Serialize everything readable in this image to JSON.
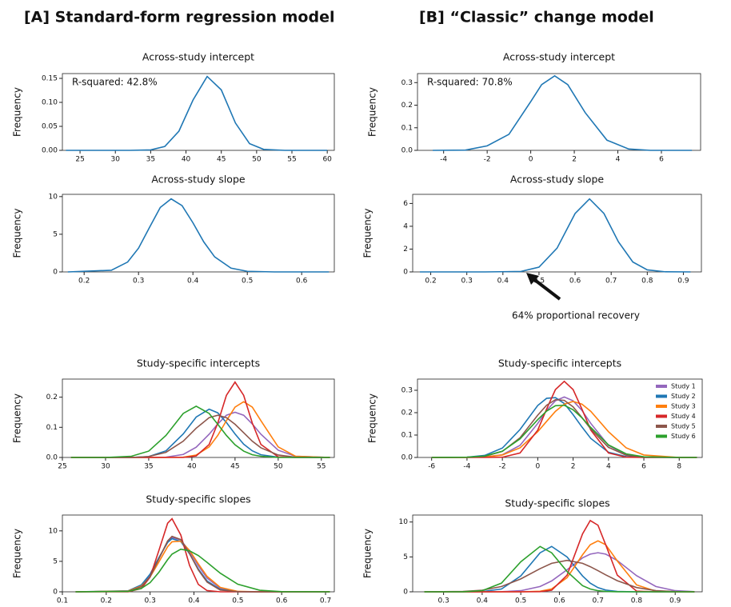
{
  "panel_titles": [
    "[A] Standard-form regression model",
    "[B] “Classic” change model"
  ],
  "chart_data": [
    {
      "type": "line",
      "title": "Across-study intercept",
      "ylabel": "Frequency",
      "annotation": "R-squared: 42.8%",
      "color": "#1f77b4",
      "x": [
        23,
        32,
        35,
        37,
        39,
        41,
        43,
        45,
        47,
        49,
        51,
        54,
        60
      ],
      "values": [
        0,
        0,
        0.001,
        0.008,
        0.04,
        0.105,
        0.154,
        0.126,
        0.057,
        0.014,
        0.002,
        0,
        0
      ],
      "xlim": [
        22.5,
        61
      ],
      "xticks": [
        25,
        30,
        35,
        40,
        45,
        50,
        55,
        60
      ],
      "ylim": [
        0,
        0.16
      ],
      "yticks": [
        {
          "value": 0,
          "label": "0.00"
        },
        {
          "value": 0.05,
          "label": "0.05"
        },
        {
          "value": 0.1,
          "label": "0.10"
        },
        0.15
      ]
    },
    {
      "type": "line",
      "title": "Across-study slope",
      "ylabel": "Frequency",
      "color": "#1f77b4",
      "x": [
        0.17,
        0.25,
        0.28,
        0.3,
        0.32,
        0.34,
        0.36,
        0.38,
        0.4,
        0.42,
        0.44,
        0.47,
        0.5,
        0.55,
        0.65
      ],
      "values": [
        0,
        0.22,
        1.31,
        3.15,
        5.88,
        8.56,
        9.7,
        8.8,
        6.53,
        3.98,
        2.0,
        0.5,
        0.08,
        0,
        0
      ],
      "xlim": [
        0.16,
        0.66
      ],
      "xticks": [
        0.2,
        0.3,
        0.4,
        0.5,
        0.6
      ],
      "ylim": [
        0,
        10.3
      ],
      "yticks": [
        0,
        5,
        10
      ]
    },
    {
      "type": "line",
      "title": "Across-study intercept",
      "ylabel": "Frequency",
      "annotation": "R-squared: 70.8%",
      "color": "#1f77b4",
      "x": [
        -4.5,
        -3,
        -2,
        -1,
        0,
        0.5,
        1.1,
        1.7,
        2.5,
        3.5,
        4.5,
        5.5,
        7.4
      ],
      "values": [
        0,
        0.001,
        0.02,
        0.071,
        0.216,
        0.291,
        0.33,
        0.291,
        0.167,
        0.045,
        0.006,
        0,
        0
      ],
      "xlim": [
        -5.2,
        7.8
      ],
      "xticks": [
        -4,
        -2,
        0,
        2,
        4,
        6
      ],
      "ylim": [
        0,
        0.34
      ],
      "yticks": [
        {
          "value": 0,
          "label": "0.0"
        },
        0.1,
        0.2,
        0.3
      ]
    },
    {
      "type": "line",
      "title": "Across-study slope",
      "ylabel": "Frequency",
      "annotation": "64% proportional recovery",
      "color": "#1f77b4",
      "x": [
        0.17,
        0.35,
        0.45,
        0.5,
        0.55,
        0.6,
        0.64,
        0.68,
        0.72,
        0.76,
        0.8,
        0.85,
        0.92
      ],
      "values": [
        0,
        0,
        0.04,
        0.42,
        2.08,
        5.12,
        6.4,
        5.12,
        2.64,
        0.87,
        0.18,
        0.01,
        0
      ],
      "xlim": [
        0.15,
        0.95
      ],
      "xticks": [
        0.2,
        0.3,
        0.4,
        0.5,
        0.6,
        0.7,
        0.8,
        0.9
      ],
      "ylim": [
        0,
        6.8
      ],
      "yticks": [
        0,
        2,
        4,
        6
      ]
    },
    {
      "type": "line",
      "title": "Study-specific intercepts",
      "ylabel": "Frequency",
      "x": [
        26,
        30,
        33,
        35,
        37,
        39,
        40.5,
        42,
        43,
        44,
        45,
        46,
        47,
        48,
        50,
        52,
        56
      ],
      "series": [
        {
          "color": "#9467bd",
          "values": [
            0,
            0,
            0,
            0,
            0.001,
            0.01,
            0.034,
            0.077,
            0.111,
            0.14,
            0.15,
            0.14,
            0.111,
            0.077,
            0.024,
            0.004,
            0
          ]
        },
        {
          "color": "#1f77b4",
          "values": [
            0,
            0,
            0,
            0.003,
            0.022,
            0.078,
            0.134,
            0.16,
            0.148,
            0.116,
            0.078,
            0.044,
            0.022,
            0.009,
            0.001,
            0,
            0
          ]
        },
        {
          "color": "#ff7f0e",
          "values": [
            0,
            0,
            0,
            0,
            0,
            0.001,
            0.008,
            0.035,
            0.073,
            0.122,
            0.167,
            0.185,
            0.167,
            0.122,
            0.035,
            0.004,
            0
          ]
        },
        {
          "color": "#d62728",
          "values": [
            0,
            0,
            0,
            0,
            0,
            0,
            0.005,
            0.043,
            0.114,
            0.206,
            0.25,
            0.206,
            0.114,
            0.043,
            0.002,
            0,
            0
          ]
        },
        {
          "color": "#8c564b",
          "values": [
            0,
            0,
            0,
            0.003,
            0.017,
            0.054,
            0.097,
            0.132,
            0.14,
            0.132,
            0.11,
            0.082,
            0.054,
            0.032,
            0.008,
            0.001,
            0
          ]
        },
        {
          "color": "#2ca02c",
          "values": [
            0,
            0,
            0.004,
            0.021,
            0.073,
            0.146,
            0.17,
            0.146,
            0.11,
            0.073,
            0.042,
            0.021,
            0.009,
            0.004,
            0,
            0,
            0
          ]
        }
      ],
      "xlim": [
        25,
        56.5
      ],
      "xticks": [
        25,
        30,
        35,
        40,
        45,
        50,
        55
      ],
      "ylim": [
        0,
        0.26
      ],
      "yticks": [
        {
          "value": 0,
          "label": "0.0"
        },
        0.1,
        0.2
      ]
    },
    {
      "type": "line",
      "title": "Study-specific slopes",
      "ylabel": "Frequency",
      "x": [
        0.13,
        0.25,
        0.28,
        0.3,
        0.32,
        0.34,
        0.35,
        0.37,
        0.39,
        0.41,
        0.43,
        0.46,
        0.5,
        0.55,
        0.6,
        0.71
      ],
      "series": [
        {
          "color": "#9467bd",
          "values": [
            0,
            0.1,
            0.91,
            2.62,
            5.46,
            8.21,
            8.91,
            8.51,
            6.64,
            4.27,
            2.24,
            0.59,
            0.05,
            0,
            0,
            0
          ]
        },
        {
          "color": "#1f77b4",
          "values": [
            0,
            0.16,
            1.13,
            2.9,
            5.61,
            8.1,
            8.72,
            8.25,
            6.23,
            3.73,
            1.77,
            0.39,
            0.03,
            0,
            0,
            0
          ]
        },
        {
          "color": "#ff7f0e",
          "values": [
            0,
            0.13,
            0.94,
            2.44,
            4.9,
            7.4,
            8.21,
            8.3,
            6.8,
            4.59,
            2.52,
            0.72,
            0.07,
            0,
            0,
            0
          ]
        },
        {
          "color": "#d62728",
          "values": [
            0,
            0,
            0.53,
            2.41,
            6.77,
            11.26,
            12,
            9.32,
            4.32,
            1.21,
            0.2,
            0,
            0,
            0,
            0,
            0
          ]
        },
        {
          "color": "#8c564b",
          "values": [
            0,
            0.07,
            0.82,
            2.48,
            5.41,
            8.35,
            9.1,
            8.57,
            6.27,
            3.58,
            1.58,
            0.29,
            0.03,
            0,
            0,
            0
          ]
        },
        {
          "color": "#2ca02c",
          "values": [
            0,
            0.08,
            0.56,
            1.51,
            3.2,
            5.28,
            6.18,
            7,
            6.72,
            5.95,
            4.83,
            3.06,
            1.24,
            0.26,
            0.03,
            0
          ]
        }
      ],
      "xlim": [
        0.1,
        0.72
      ],
      "xticks": [
        0.1,
        0.2,
        0.3,
        0.4,
        0.5,
        0.6,
        0.7
      ],
      "ylim": [
        0,
        12.6
      ],
      "yticks": [
        0,
        5,
        10
      ]
    },
    {
      "type": "line",
      "title": "Study-specific intercepts",
      "ylabel": "Frequency",
      "legend": "upper right",
      "x": [
        -6,
        -4,
        -3,
        -2,
        -1,
        0,
        0.5,
        1,
        1.5,
        2,
        2.5,
        3,
        4,
        5,
        6,
        8,
        9
      ],
      "series": [
        {
          "name": "Study 1",
          "color": "#9467bd",
          "values": [
            0,
            0,
            0.002,
            0.012,
            0.054,
            0.152,
            0.21,
            0.253,
            0.27,
            0.253,
            0.21,
            0.152,
            0.054,
            0.012,
            0.002,
            0,
            0
          ]
        },
        {
          "name": "Study 2",
          "color": "#1f77b4",
          "values": [
            0,
            0.001,
            0.009,
            0.042,
            0.125,
            0.232,
            0.264,
            0.267,
            0.241,
            0.191,
            0.136,
            0.085,
            0.023,
            0.004,
            0,
            0,
            0
          ]
        },
        {
          "name": "Study 3",
          "color": "#ff7f0e",
          "values": [
            0,
            0,
            0.002,
            0.011,
            0.043,
            0.115,
            0.161,
            0.206,
            0.238,
            0.25,
            0.238,
            0.206,
            0.115,
            0.043,
            0.011,
            0,
            0
          ]
        },
        {
          "name": "Study 4",
          "color": "#d62728",
          "values": [
            0,
            0,
            0,
            0.001,
            0.02,
            0.122,
            0.216,
            0.303,
            0.34,
            0.303,
            0.216,
            0.122,
            0.02,
            0.001,
            0,
            0,
            0
          ]
        },
        {
          "name": "Study 5",
          "color": "#8c564b",
          "values": [
            0,
            0.001,
            0.005,
            0.027,
            0.088,
            0.189,
            0.233,
            0.258,
            0.255,
            0.226,
            0.178,
            0.127,
            0.045,
            0.01,
            0.002,
            0,
            0
          ]
        },
        {
          "name": "Study 6",
          "color": "#2ca02c",
          "values": [
            0,
            0.001,
            0.006,
            0.028,
            0.083,
            0.169,
            0.207,
            0.231,
            0.233,
            0.213,
            0.177,
            0.134,
            0.056,
            0.016,
            0.003,
            0,
            0
          ]
        }
      ],
      "xlim": [
        -6.8,
        9.3
      ],
      "xticks": [
        -6,
        -4,
        -2,
        0,
        2,
        4,
        6,
        8
      ],
      "ylim": [
        0,
        0.35
      ],
      "yticks": [
        {
          "value": 0,
          "label": "0.0"
        },
        0.1,
        0.2,
        0.3
      ]
    },
    {
      "type": "line",
      "title": "Study-specific slopes",
      "ylabel": "Frequency",
      "x": [
        0.25,
        0.35,
        0.4,
        0.45,
        0.5,
        0.55,
        0.58,
        0.62,
        0.66,
        0.68,
        0.7,
        0.72,
        0.75,
        0.8,
        0.85,
        0.9,
        0.95
      ],
      "series": [
        {
          "color": "#9467bd",
          "values": [
            0,
            0,
            0,
            0.02,
            0.16,
            0.76,
            1.56,
            3.16,
            4.86,
            5.4,
            5.6,
            5.4,
            4.48,
            2.31,
            0.76,
            0.16,
            0.02
          ]
        },
        {
          "color": "#1f77b4",
          "values": [
            0,
            0,
            0.03,
            0.4,
            2.27,
            5.59,
            6.5,
            4.99,
            2.27,
            1.24,
            0.6,
            0.25,
            0.05,
            0,
            0,
            0,
            0
          ]
        },
        {
          "color": "#ff7f0e",
          "values": [
            0,
            0,
            0,
            0,
            0,
            0.08,
            0.41,
            2.03,
            5.3,
            6.74,
            7.3,
            6.74,
            4.43,
            0.99,
            0.08,
            0,
            0
          ]
        },
        {
          "color": "#d62728",
          "values": [
            0,
            0,
            0,
            0,
            0,
            0.02,
            0.23,
            2.39,
            8.29,
            10.21,
            9.54,
            6.74,
            2.39,
            0.1,
            0,
            0,
            0
          ]
        },
        {
          "color": "#8c564b",
          "values": [
            0,
            0.05,
            0.23,
            0.76,
            1.85,
            3.32,
            4.08,
            4.5,
            4.08,
            3.6,
            3.03,
            2.43,
            1.59,
            0.61,
            0.17,
            0.04,
            0
          ]
        },
        {
          "color": "#2ca02c",
          "values": [
            0,
            0.01,
            0.16,
            1.24,
            4.3,
            6.5,
            5.59,
            2.9,
            0.88,
            0.4,
            0.16,
            0.05,
            0.01,
            0,
            0,
            0,
            0
          ]
        }
      ],
      "xlim": [
        0.22,
        0.97
      ],
      "xticks": [
        0.3,
        0.4,
        0.5,
        0.6,
        0.7,
        0.8,
        0.9
      ],
      "ylim": [
        0,
        11
      ],
      "yticks": [
        0,
        5,
        10
      ]
    }
  ]
}
